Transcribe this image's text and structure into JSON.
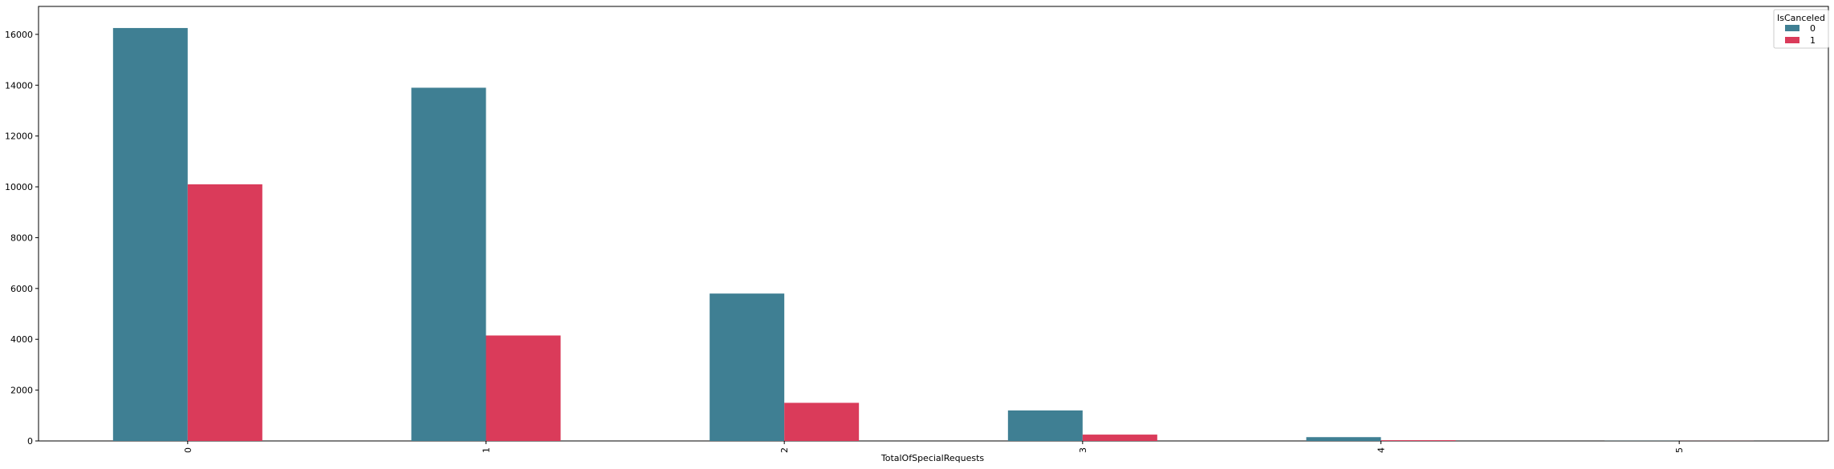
{
  "chart_data": {
    "type": "bar",
    "title": "",
    "xlabel": "TotalOfSpecialRequests",
    "ylabel": "",
    "categories": [
      "0",
      "1",
      "2",
      "3",
      "4",
      "5"
    ],
    "series": [
      {
        "name": "0",
        "color": "#3f7f93",
        "values": [
          16250,
          13900,
          5800,
          1200,
          150,
          5
        ]
      },
      {
        "name": "1",
        "color": "#da3b5a",
        "values": [
          10100,
          4150,
          1500,
          250,
          30,
          3
        ]
      }
    ],
    "ylim": [
      0,
      17100
    ],
    "yticks": [
      0,
      2000,
      4000,
      6000,
      8000,
      10000,
      12000,
      14000,
      16000
    ],
    "grid": false,
    "legend": {
      "title": "IsCanceled",
      "placement": "top-right"
    }
  }
}
